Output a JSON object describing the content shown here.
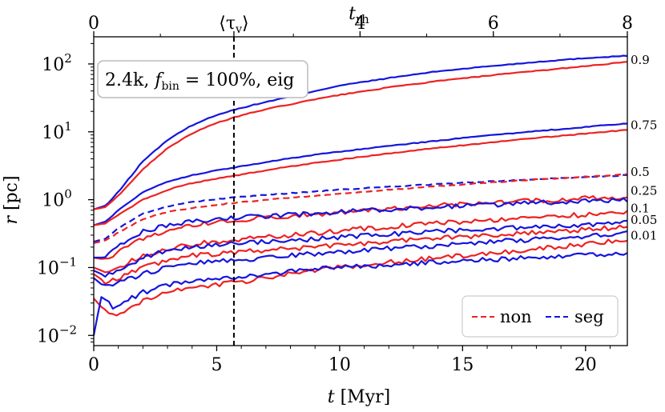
{
  "chart_data": {
    "type": "line",
    "title": "",
    "xlabel": "t [Myr]",
    "xlabel_main": "t",
    "xlabel_unit": "[Myr]",
    "ylabel": "r [pc]",
    "ylabel_main": "r",
    "ylabel_unit": "[pc]",
    "xlim": [
      0,
      21.7
    ],
    "ylim_log10": [
      -2.15,
      2.4
    ],
    "yscale": "log",
    "x_ticks": [
      0,
      5,
      10,
      15,
      20
    ],
    "x_tick_labels": [
      "0",
      "5",
      "10",
      "15",
      "20"
    ],
    "y_ticks_log10": [
      -2,
      -1,
      0,
      1,
      2
    ],
    "y_tick_labels": [
      {
        "base": "10",
        "exp": "−2"
      },
      {
        "base": "10",
        "exp": "−1"
      },
      {
        "base": "10",
        "exp": "0"
      },
      {
        "base": "10",
        "exp": "1"
      },
      {
        "base": "10",
        "exp": "2"
      }
    ],
    "top_axis": {
      "label": "t_rh",
      "label_main": "t",
      "label_sub": "rh",
      "ticks_t": [
        0,
        10.83,
        16.25,
        21.7
      ],
      "tick_labels": [
        "0",
        "4",
        "6",
        "8"
      ],
      "special_tick": {
        "t": 5.7,
        "label": "⟨τv⟩",
        "label_open": "⟨τ",
        "label_sub": "v",
        "label_close": "⟩"
      }
    },
    "vline_t": 5.7,
    "annotation": {
      "text": "2.4k, f_bin = 100%, eig",
      "prefix": "2.4k, ",
      "f": "f",
      "f_sub": "bin",
      "suffix": " = 100%, eig"
    },
    "right_labels": [
      {
        "text": "0.9",
        "log10": 2.06
      },
      {
        "text": "0.75",
        "log10": 1.1
      },
      {
        "text": "0.5",
        "log10": 0.41
      },
      {
        "text": "0.25",
        "log10": 0.13
      },
      {
        "text": "0.1",
        "log10": -0.13
      },
      {
        "text": "0.05",
        "log10": -0.3
      },
      {
        "text": "0.01",
        "log10": -0.53
      }
    ],
    "legend": [
      {
        "label": "non",
        "color": "#ee2222",
        "style": "dashed"
      },
      {
        "label": "seg",
        "color": "#1515dd",
        "style": "dashed"
      }
    ],
    "colors": {
      "non": "#ee2222",
      "seg": "#1515dd",
      "vline": "#000000"
    },
    "series": [
      {
        "name": "seg 0.9",
        "group": "seg",
        "style": "solid",
        "t": [
          0,
          0.5,
          1,
          2,
          3,
          4,
          5,
          6,
          7,
          8,
          9,
          10,
          12,
          14,
          16,
          18,
          20,
          21.7
        ],
        "r": [
          0.72,
          0.82,
          1.3,
          3.7,
          7.6,
          12.5,
          17.8,
          22.5,
          27.5,
          33,
          40,
          48,
          62,
          78,
          92,
          107,
          122,
          132
        ]
      },
      {
        "name": "non 0.9",
        "group": "non",
        "style": "solid",
        "t": [
          0,
          0.5,
          1,
          2,
          3,
          4,
          5,
          6,
          7,
          8,
          9,
          10,
          12,
          14,
          16,
          18,
          20,
          21.7
        ],
        "r": [
          0.72,
          0.78,
          1.15,
          2.8,
          5.8,
          9.5,
          13.5,
          17.5,
          21.5,
          25.5,
          30,
          35,
          45,
          56,
          67,
          79,
          93,
          107
        ]
      },
      {
        "name": "seg 0.75",
        "group": "seg",
        "style": "solid",
        "t": [
          0,
          0.5,
          1,
          2,
          3,
          4,
          5,
          6,
          8,
          10,
          12,
          14,
          16,
          18,
          20,
          21.7
        ],
        "r": [
          0.42,
          0.48,
          0.7,
          1.3,
          1.85,
          2.3,
          2.7,
          3.1,
          4.1,
          5.1,
          6.2,
          7.4,
          8.8,
          10.2,
          11.8,
          13.3
        ]
      },
      {
        "name": "non 0.75",
        "group": "non",
        "style": "solid",
        "t": [
          0,
          0.5,
          1,
          2,
          3,
          4,
          5,
          6,
          8,
          10,
          12,
          14,
          16,
          18,
          20,
          21.7
        ],
        "r": [
          0.42,
          0.45,
          0.6,
          1.0,
          1.4,
          1.75,
          2.05,
          2.35,
          3.1,
          3.9,
          4.8,
          5.8,
          6.9,
          8.1,
          9.4,
          10.7
        ]
      },
      {
        "name": "seg 0.5",
        "group": "seg",
        "style": "dashed",
        "t": [
          0,
          0.5,
          1,
          2,
          3,
          4,
          5,
          6,
          8,
          10,
          12,
          14,
          16,
          18,
          20,
          21.7
        ],
        "r": [
          0.24,
          0.27,
          0.38,
          0.62,
          0.8,
          0.92,
          1.02,
          1.1,
          1.25,
          1.4,
          1.55,
          1.7,
          1.85,
          2.0,
          2.15,
          2.3
        ]
      },
      {
        "name": "non 0.5",
        "group": "non",
        "style": "dashed",
        "t": [
          0,
          0.5,
          1,
          2,
          3,
          4,
          5,
          6,
          8,
          10,
          12,
          14,
          16,
          18,
          20,
          21.7
        ],
        "r": [
          0.23,
          0.25,
          0.33,
          0.52,
          0.66,
          0.76,
          0.84,
          0.92,
          1.07,
          1.22,
          1.4,
          1.58,
          1.78,
          1.98,
          2.18,
          2.38
        ]
      },
      {
        "name": "non 0.25",
        "group": "non",
        "style": "solid",
        "t": [
          0,
          0.5,
          1,
          2,
          3,
          4,
          5,
          6,
          8,
          10,
          12,
          14,
          16,
          18,
          20,
          21.7
        ],
        "r": [
          0.14,
          0.13,
          0.17,
          0.27,
          0.36,
          0.42,
          0.47,
          0.51,
          0.58,
          0.65,
          0.73,
          0.82,
          0.9,
          0.97,
          1.05,
          1.1
        ]
      },
      {
        "name": "seg 0.25",
        "group": "seg",
        "style": "solid",
        "t": [
          0,
          0.5,
          1,
          2,
          3,
          4,
          5,
          6,
          8,
          10,
          12,
          14,
          16,
          18,
          20,
          21.7
        ],
        "r": [
          0.14,
          0.14,
          0.21,
          0.34,
          0.42,
          0.47,
          0.51,
          0.55,
          0.6,
          0.66,
          0.72,
          0.78,
          0.84,
          0.9,
          0.96,
          1.0
        ]
      },
      {
        "name": "non 0.1",
        "group": "non",
        "style": "solid",
        "t": [
          0,
          0.5,
          1,
          2,
          3,
          4,
          5,
          6,
          8,
          10,
          12,
          14,
          16,
          18,
          20,
          21.7
        ],
        "r": [
          0.1,
          0.085,
          0.1,
          0.15,
          0.19,
          0.22,
          0.24,
          0.26,
          0.3,
          0.35,
          0.4,
          0.45,
          0.5,
          0.55,
          0.6,
          0.64
        ]
      },
      {
        "name": "seg 0.1",
        "group": "seg",
        "style": "solid",
        "t": [
          0,
          0.5,
          1,
          2,
          3,
          4,
          5,
          6,
          8,
          10,
          12,
          14,
          16,
          18,
          20,
          21.7
        ],
        "r": [
          0.09,
          0.075,
          0.09,
          0.14,
          0.18,
          0.2,
          0.22,
          0.23,
          0.25,
          0.28,
          0.31,
          0.34,
          0.37,
          0.4,
          0.43,
          0.46
        ]
      },
      {
        "name": "non 0.05",
        "group": "non",
        "style": "solid",
        "t": [
          0,
          0.5,
          1,
          2,
          3,
          4,
          5,
          6,
          8,
          10,
          12,
          14,
          16,
          18,
          20,
          21.7
        ],
        "r": [
          0.08,
          0.06,
          0.07,
          0.1,
          0.13,
          0.15,
          0.16,
          0.17,
          0.19,
          0.21,
          0.24,
          0.27,
          0.3,
          0.33,
          0.36,
          0.4
        ]
      },
      {
        "name": "seg 0.05",
        "group": "seg",
        "style": "solid",
        "t": [
          0,
          0.5,
          1,
          2,
          3,
          4,
          5,
          6,
          8,
          10,
          12,
          14,
          16,
          18,
          20,
          21.7
        ],
        "r": [
          0.07,
          0.05,
          0.06,
          0.08,
          0.1,
          0.115,
          0.125,
          0.13,
          0.15,
          0.17,
          0.19,
          0.21,
          0.24,
          0.26,
          0.29,
          0.32
        ]
      },
      {
        "name": "non 0.01",
        "group": "non",
        "style": "solid",
        "t": [
          0,
          0.5,
          1,
          2,
          3,
          4,
          5,
          6,
          8,
          10,
          12,
          14,
          16,
          18,
          20,
          21.7
        ],
        "r": [
          0.035,
          0.022,
          0.02,
          0.033,
          0.043,
          0.05,
          0.056,
          0.062,
          0.08,
          0.1,
          0.12,
          0.14,
          0.16,
          0.19,
          0.22,
          0.26
        ]
      },
      {
        "name": "seg 0.01",
        "group": "seg",
        "style": "solid",
        "t": [
          0,
          0.3,
          0.8,
          2,
          3,
          4,
          5,
          6,
          8,
          10,
          12,
          14,
          16,
          18,
          20,
          21.7
        ],
        "r": [
          0.01,
          0.037,
          0.026,
          0.043,
          0.055,
          0.062,
          0.068,
          0.075,
          0.088,
          0.1,
          0.11,
          0.12,
          0.13,
          0.14,
          0.155,
          0.16
        ]
      }
    ]
  }
}
